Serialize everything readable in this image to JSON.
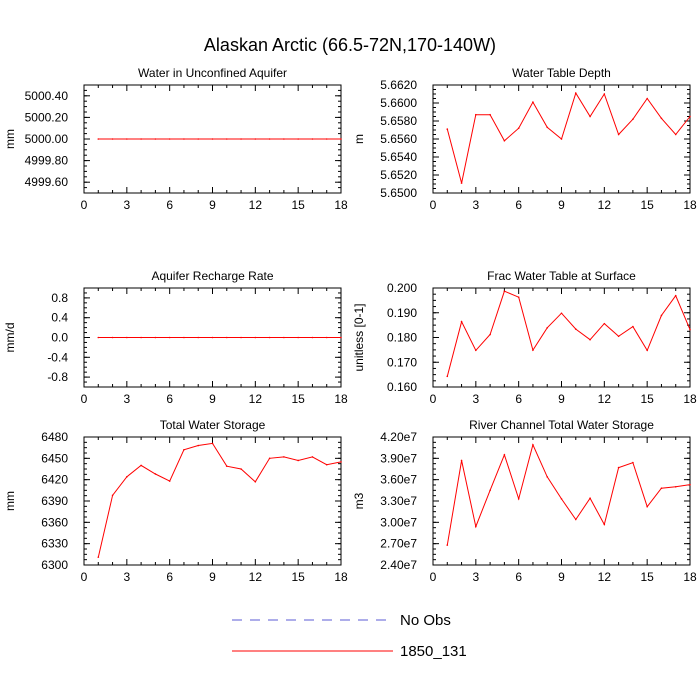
{
  "title": "Alaskan Arctic (66.5-72N,170-140W)",
  "legend": {
    "entries": [
      {
        "label": "No Obs",
        "color": "#5b5bd6",
        "dash": true
      },
      {
        "label": "1850_131",
        "color": "#ff0000",
        "dash": false
      }
    ]
  },
  "chart_data": [
    {
      "type": "line",
      "title": "Water in Unconfined Aquifer",
      "ylabel": "mm",
      "xlim": [
        0,
        18
      ],
      "ylim": [
        4999.5,
        5000.5
      ],
      "xticks": [
        0,
        3,
        6,
        9,
        12,
        15,
        18
      ],
      "yticks": [
        4999.6,
        4999.8,
        5000.0,
        5000.2,
        5000.4
      ],
      "ytick_labels": [
        "4999.60",
        "4999.80",
        "5000.00",
        "5000.20",
        "5000.40"
      ],
      "x": [
        1,
        2,
        3,
        4,
        5,
        6,
        7,
        8,
        9,
        10,
        11,
        12,
        13,
        14,
        15,
        16,
        17,
        18
      ],
      "series": [
        {
          "color": "#ff0000",
          "values": [
            5000,
            5000,
            5000,
            5000,
            5000,
            5000,
            5000,
            5000,
            5000,
            5000,
            5000,
            5000,
            5000,
            5000,
            5000,
            5000,
            5000,
            5000
          ]
        }
      ]
    },
    {
      "type": "line",
      "title": "Water Table Depth",
      "ylabel": "m",
      "xlim": [
        0,
        18
      ],
      "ylim": [
        5.65,
        5.662
      ],
      "xticks": [
        0,
        3,
        6,
        9,
        12,
        15,
        18
      ],
      "yticks": [
        5.65,
        5.652,
        5.654,
        5.656,
        5.658,
        5.66,
        5.662
      ],
      "ytick_labels": [
        "5.6500",
        "5.6520",
        "5.6540",
        "5.6560",
        "5.6580",
        "5.6600",
        "5.6620"
      ],
      "x": [
        1,
        2,
        3,
        4,
        5,
        6,
        7,
        8,
        9,
        10,
        11,
        12,
        13,
        14,
        15,
        16,
        17,
        18
      ],
      "series": [
        {
          "color": "#ff0000",
          "values": [
            5.6571,
            5.6511,
            5.6587,
            5.6587,
            5.6558,
            5.6572,
            5.6601,
            5.6573,
            5.656,
            5.6611,
            5.6585,
            5.661,
            5.6565,
            5.6582,
            5.6605,
            5.6583,
            5.6565,
            5.6585
          ]
        }
      ]
    },
    {
      "type": "line",
      "title": "Aquifer Recharge Rate",
      "ylabel": "mm/d",
      "xlim": [
        0,
        18
      ],
      "ylim": [
        -1,
        1
      ],
      "xticks": [
        0,
        3,
        6,
        9,
        12,
        15,
        18
      ],
      "yticks": [
        -0.8,
        -0.4,
        0,
        0.4,
        0.8
      ],
      "ytick_labels": [
        "-0.8",
        "-0.4",
        "0.0",
        "0.4",
        "0.8"
      ],
      "x": [
        1,
        2,
        3,
        4,
        5,
        6,
        7,
        8,
        9,
        10,
        11,
        12,
        13,
        14,
        15,
        16,
        17,
        18
      ],
      "series": [
        {
          "color": "#ff0000",
          "values": [
            0,
            0,
            0,
            0,
            0,
            0,
            0,
            0,
            0,
            0,
            0,
            0,
            0,
            0,
            0,
            0,
            0,
            0
          ]
        }
      ]
    },
    {
      "type": "line",
      "title": "Frac Water Table at Surface",
      "ylabel": "unitless [0-1]",
      "xlim": [
        0,
        18
      ],
      "ylim": [
        0.16,
        0.2
      ],
      "xticks": [
        0,
        3,
        6,
        9,
        12,
        15,
        18
      ],
      "yticks": [
        0.16,
        0.17,
        0.18,
        0.19,
        0.2
      ],
      "ytick_labels": [
        "0.160",
        "0.170",
        "0.180",
        "0.190",
        "0.200"
      ],
      "x": [
        1,
        2,
        3,
        4,
        5,
        6,
        7,
        8,
        9,
        10,
        11,
        12,
        13,
        14,
        15,
        16,
        17,
        18
      ],
      "series": [
        {
          "color": "#ff0000",
          "values": [
            0.1643,
            0.1864,
            0.1748,
            0.1812,
            0.1987,
            0.1963,
            0.1749,
            0.1839,
            0.1898,
            0.1834,
            0.1791,
            0.1856,
            0.1805,
            0.1844,
            0.1748,
            0.1889,
            0.1969,
            0.1832
          ]
        }
      ]
    },
    {
      "type": "line",
      "title": "Total Water Storage",
      "ylabel": "mm",
      "xlim": [
        0,
        18
      ],
      "ylim": [
        6300,
        6480
      ],
      "xticks": [
        0,
        3,
        6,
        9,
        12,
        15,
        18
      ],
      "yticks": [
        6300,
        6330,
        6360,
        6390,
        6420,
        6450,
        6480
      ],
      "ytick_labels": [
        "6300",
        "6330",
        "6360",
        "6390",
        "6420",
        "6450",
        "6480"
      ],
      "x": [
        1,
        2,
        3,
        4,
        5,
        6,
        7,
        8,
        9,
        10,
        11,
        12,
        13,
        14,
        15,
        16,
        17,
        18
      ],
      "series": [
        {
          "color": "#ff0000",
          "values": [
            6311,
            6398,
            6424,
            6440,
            6428,
            6418,
            6462,
            6468,
            6471,
            6439,
            6435,
            6417,
            6450,
            6452,
            6447,
            6452,
            6441,
            6445
          ]
        }
      ]
    },
    {
      "type": "line",
      "title": "River Channel Total Water Storage",
      "ylabel": "m3",
      "xlim": [
        0,
        18
      ],
      "ylim": [
        24000000,
        42000000
      ],
      "xticks": [
        0,
        3,
        6,
        9,
        12,
        15,
        18
      ],
      "yticks": [
        24000000,
        27000000,
        30000000,
        33000000,
        36000000,
        39000000,
        42000000
      ],
      "ytick_labels": [
        "2.40e7",
        "2.70e7",
        "3.00e7",
        "3.30e7",
        "3.60e7",
        "3.90e7",
        "4.20e7"
      ],
      "x": [
        1,
        2,
        3,
        4,
        5,
        6,
        7,
        8,
        9,
        10,
        11,
        12,
        13,
        14,
        15,
        16,
        17,
        18
      ],
      "series": [
        {
          "color": "#ff0000",
          "values": [
            26800000,
            38700000,
            29400000,
            34500000,
            39500000,
            33300000,
            40900000,
            36400000,
            33300000,
            30400000,
            33400000,
            29700000,
            37700000,
            38400000,
            32200000,
            34800000,
            35000000,
            35300000
          ]
        }
      ]
    }
  ]
}
